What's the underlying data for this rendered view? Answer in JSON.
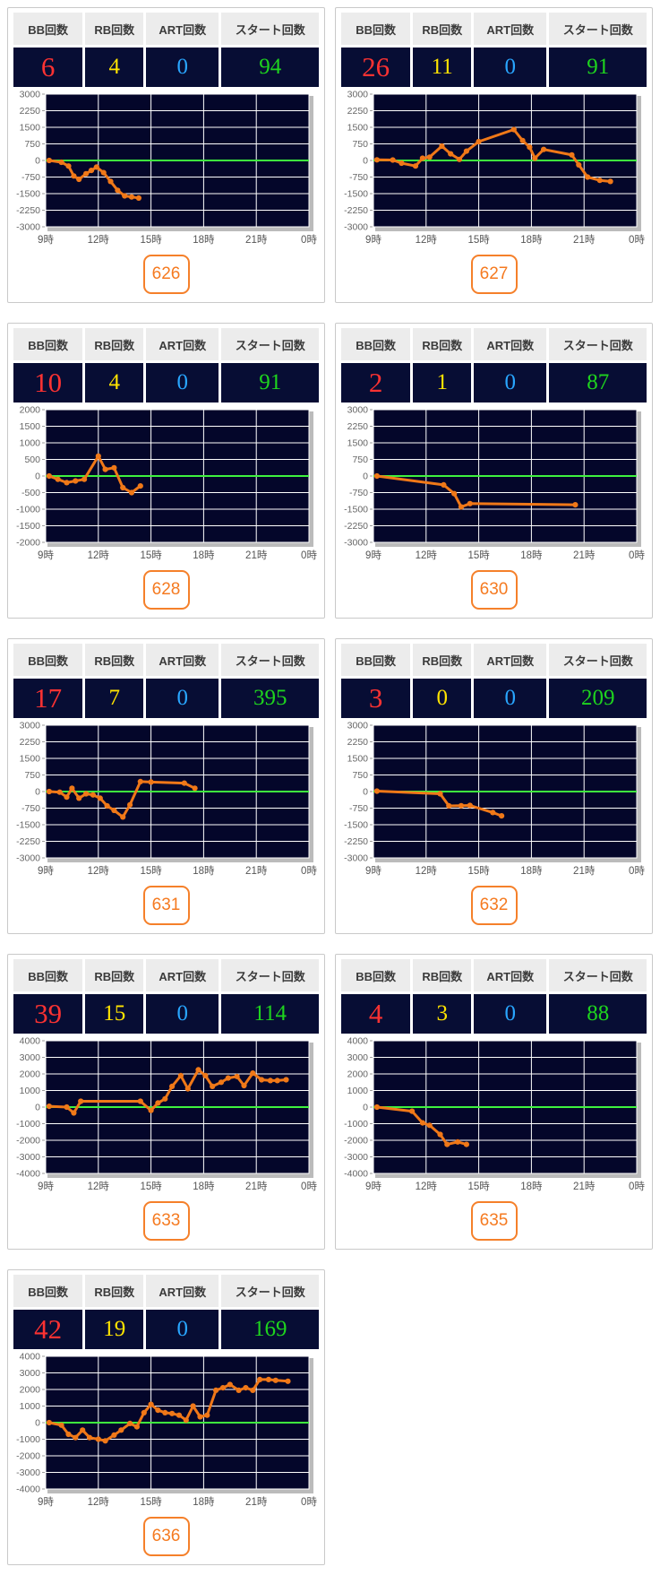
{
  "table_headers": [
    "BB回数",
    "RB回数",
    "ART回数",
    "スタート回数"
  ],
  "colors": {
    "bb": "#fb3232",
    "rb": "#ffe400",
    "art": "#29a6ff",
    "start": "#1ed41e",
    "line": "#f07818",
    "zero_line": "#3ef23e",
    "plot_bg": "#04062a",
    "grid": "#ffffff",
    "cell_bg": "#070d34",
    "header_bg": "#ececec",
    "badge": "#f5802a",
    "axis_text": "#666666"
  },
  "x_axis": {
    "labels": [
      "9時",
      "12時",
      "15時",
      "18時",
      "21時",
      "0時"
    ],
    "label_hours": [
      9,
      12,
      15,
      18,
      21,
      24
    ],
    "gridline_hours": [
      12,
      15,
      18,
      21
    ],
    "start_hour": 9,
    "end_hour": 24
  },
  "chart_data": [
    {
      "type": "line",
      "machine_no": "626",
      "counters": {
        "bb": "6",
        "rb": "4",
        "art": "0",
        "start": "94"
      },
      "ylim": [
        -3000,
        3000
      ],
      "y_step": 750,
      "points": [
        [
          9.2,
          0
        ],
        [
          9.9,
          -80
        ],
        [
          10.3,
          -250
        ],
        [
          10.6,
          -700
        ],
        [
          10.9,
          -850
        ],
        [
          11.3,
          -600
        ],
        [
          11.6,
          -450
        ],
        [
          11.9,
          -300
        ],
        [
          12.3,
          -550
        ],
        [
          12.7,
          -950
        ],
        [
          13.1,
          -1350
        ],
        [
          13.5,
          -1600
        ],
        [
          13.9,
          -1650
        ],
        [
          14.3,
          -1700
        ]
      ]
    },
    {
      "type": "line",
      "machine_no": "627",
      "counters": {
        "bb": "26",
        "rb": "11",
        "art": "0",
        "start": "91"
      },
      "ylim": [
        -3000,
        3000
      ],
      "y_step": 750,
      "points": [
        [
          9.2,
          30
        ],
        [
          10.1,
          20
        ],
        [
          10.6,
          -120
        ],
        [
          11.4,
          -250
        ],
        [
          11.8,
          100
        ],
        [
          12.2,
          150
        ],
        [
          12.9,
          650
        ],
        [
          13.4,
          300
        ],
        [
          13.9,
          50
        ],
        [
          14.3,
          420
        ],
        [
          15.0,
          850
        ],
        [
          17.0,
          1400
        ],
        [
          17.5,
          900
        ],
        [
          17.9,
          600
        ],
        [
          18.2,
          100
        ],
        [
          18.7,
          500
        ],
        [
          20.3,
          250
        ],
        [
          20.7,
          -200
        ],
        [
          21.2,
          -750
        ],
        [
          21.9,
          -900
        ],
        [
          22.5,
          -950
        ]
      ]
    },
    {
      "type": "line",
      "machine_no": "628",
      "counters": {
        "bb": "10",
        "rb": "4",
        "art": "0",
        "start": "91"
      },
      "ylim": [
        -2000,
        2000
      ],
      "y_step": 500,
      "points": [
        [
          9.2,
          0
        ],
        [
          9.7,
          -100
        ],
        [
          10.2,
          -200
        ],
        [
          10.7,
          -150
        ],
        [
          11.2,
          -100
        ],
        [
          12.0,
          600
        ],
        [
          12.4,
          200
        ],
        [
          12.9,
          250
        ],
        [
          13.4,
          -350
        ],
        [
          13.9,
          -500
        ],
        [
          14.4,
          -300
        ]
      ]
    },
    {
      "type": "line",
      "machine_no": "630",
      "counters": {
        "bb": "2",
        "rb": "1",
        "art": "0",
        "start": "87"
      },
      "ylim": [
        -3000,
        3000
      ],
      "y_step": 750,
      "points": [
        [
          9.2,
          0
        ],
        [
          13.0,
          -400
        ],
        [
          13.6,
          -800
        ],
        [
          14.0,
          -1400
        ],
        [
          14.5,
          -1250
        ],
        [
          20.5,
          -1300
        ]
      ]
    },
    {
      "type": "line",
      "machine_no": "631",
      "counters": {
        "bb": "17",
        "rb": "7",
        "art": "0",
        "start": "395"
      },
      "ylim": [
        -3000,
        3000
      ],
      "y_step": 750,
      "points": [
        [
          9.2,
          0
        ],
        [
          9.8,
          -30
        ],
        [
          10.2,
          -250
        ],
        [
          10.5,
          150
        ],
        [
          10.9,
          -300
        ],
        [
          11.3,
          -100
        ],
        [
          11.7,
          -150
        ],
        [
          12.1,
          -300
        ],
        [
          12.5,
          -650
        ],
        [
          12.9,
          -850
        ],
        [
          13.4,
          -1150
        ],
        [
          13.8,
          -600
        ],
        [
          14.4,
          450
        ],
        [
          15.0,
          430
        ],
        [
          16.9,
          380
        ],
        [
          17.5,
          150
        ]
      ]
    },
    {
      "type": "line",
      "machine_no": "632",
      "counters": {
        "bb": "3",
        "rb": "0",
        "art": "0",
        "start": "209"
      },
      "ylim": [
        -3000,
        3000
      ],
      "y_step": 750,
      "points": [
        [
          9.2,
          20
        ],
        [
          12.8,
          -100
        ],
        [
          13.3,
          -650
        ],
        [
          14.0,
          -640
        ],
        [
          14.5,
          -630
        ],
        [
          15.8,
          -950
        ],
        [
          16.3,
          -1100
        ]
      ]
    },
    {
      "type": "line",
      "machine_no": "633",
      "counters": {
        "bb": "39",
        "rb": "15",
        "art": "0",
        "start": "114"
      },
      "ylim": [
        -4000,
        4000
      ],
      "y_step": 1000,
      "points": [
        [
          9.2,
          50
        ],
        [
          10.2,
          0
        ],
        [
          10.6,
          -350
        ],
        [
          11.0,
          350
        ],
        [
          14.4,
          350
        ],
        [
          15.0,
          -200
        ],
        [
          15.4,
          250
        ],
        [
          15.8,
          500
        ],
        [
          16.2,
          1250
        ],
        [
          16.7,
          1900
        ],
        [
          17.1,
          1100
        ],
        [
          17.7,
          2250
        ],
        [
          18.1,
          1900
        ],
        [
          18.5,
          1250
        ],
        [
          19.0,
          1500
        ],
        [
          19.4,
          1750
        ],
        [
          19.9,
          1850
        ],
        [
          20.3,
          1300
        ],
        [
          20.8,
          2050
        ],
        [
          21.3,
          1650
        ],
        [
          21.8,
          1600
        ],
        [
          22.2,
          1600
        ],
        [
          22.7,
          1650
        ]
      ]
    },
    {
      "type": "line",
      "machine_no": "635",
      "counters": {
        "bb": "4",
        "rb": "3",
        "art": "0",
        "start": "88"
      },
      "ylim": [
        -4000,
        4000
      ],
      "y_step": 1000,
      "points": [
        [
          9.2,
          0
        ],
        [
          11.2,
          -250
        ],
        [
          11.8,
          -950
        ],
        [
          12.2,
          -1100
        ],
        [
          12.8,
          -1650
        ],
        [
          13.2,
          -2250
        ],
        [
          13.8,
          -2100
        ],
        [
          14.3,
          -2250
        ]
      ]
    },
    {
      "type": "line",
      "machine_no": "636",
      "counters": {
        "bb": "42",
        "rb": "19",
        "art": "0",
        "start": "169"
      },
      "ylim": [
        -4000,
        4000
      ],
      "y_step": 1000,
      "points": [
        [
          9.2,
          0
        ],
        [
          9.9,
          -150
        ],
        [
          10.3,
          -700
        ],
        [
          10.7,
          -900
        ],
        [
          11.1,
          -450
        ],
        [
          11.5,
          -900
        ],
        [
          12.0,
          -1000
        ],
        [
          12.4,
          -1100
        ],
        [
          12.9,
          -750
        ],
        [
          13.3,
          -450
        ],
        [
          13.8,
          -50
        ],
        [
          14.2,
          -250
        ],
        [
          14.6,
          600
        ],
        [
          15.0,
          1100
        ],
        [
          15.4,
          750
        ],
        [
          15.8,
          600
        ],
        [
          16.2,
          550
        ],
        [
          16.6,
          450
        ],
        [
          17.0,
          150
        ],
        [
          17.4,
          1000
        ],
        [
          17.8,
          350
        ],
        [
          18.2,
          450
        ],
        [
          18.7,
          1950
        ],
        [
          19.1,
          2100
        ],
        [
          19.5,
          2300
        ],
        [
          20.0,
          1950
        ],
        [
          20.4,
          2100
        ],
        [
          20.8,
          1950
        ],
        [
          21.2,
          2600
        ],
        [
          21.7,
          2600
        ],
        [
          22.1,
          2550
        ],
        [
          22.8,
          2500
        ]
      ]
    }
  ]
}
